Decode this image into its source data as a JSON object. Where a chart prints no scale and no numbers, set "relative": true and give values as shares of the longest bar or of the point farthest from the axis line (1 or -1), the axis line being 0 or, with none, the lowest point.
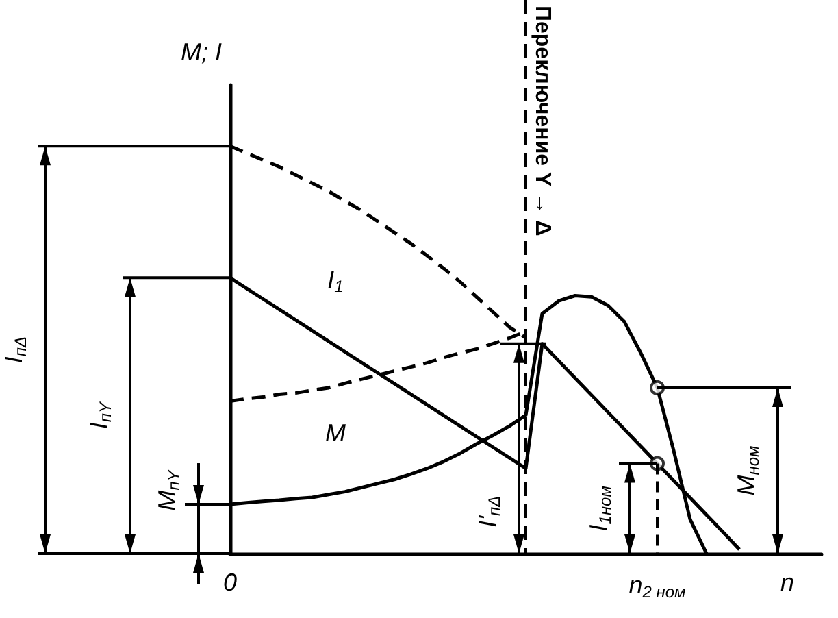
{
  "chart_data": {
    "type": "line",
    "relative": true,
    "ylabel": "M; I",
    "xlabel": "n",
    "categories": [
      "0",
      null,
      null,
      null,
      null,
      null,
      null,
      null,
      null,
      null,
      null,
      null,
      null,
      null,
      null,
      null,
      null,
      null,
      null,
      null,
      null,
      null,
      null,
      null,
      null,
      null,
      "n$_{2 ном}$",
      null,
      null,
      null,
      null,
      null,
      null,
      null,
      null,
      null,
      null
    ],
    "series": [
      {
        "line_style": "dashed",
        "color": "#000000",
        "values": [
          1.0,
          0.983,
          0.966,
          0.949,
          0.929,
          0.909,
          0.889,
          0.865,
          0.842,
          0.815,
          0.788,
          0.761,
          0.731,
          0.7,
          0.667,
          0.63,
          0.593,
          0.556,
          0.529,
          null,
          null,
          null,
          null,
          null,
          null,
          null,
          null,
          null,
          null,
          null,
          null,
          null,
          null,
          null,
          null,
          null,
          null
        ]
      },
      {
        "name": "I$_{1}$",
        "line_style": "solid",
        "color": "#000000",
        "values": [
          0.677,
          0.651,
          0.625,
          0.599,
          0.573,
          0.547,
          0.521,
          0.495,
          0.469,
          0.443,
          0.417,
          0.391,
          0.365,
          0.339,
          0.313,
          0.287,
          0.261,
          0.235,
          0.209,
          0.515,
          0.473,
          0.431,
          0.389,
          0.347,
          0.305,
          0.263,
          0.221,
          0.179,
          0.137,
          0.095,
          0.053,
          0.01,
          null,
          null,
          null,
          null,
          null
        ]
      },
      {
        "line_style": "dashed",
        "color": "#000000",
        "values": [
          0.374,
          0.38,
          0.384,
          0.391,
          0.394,
          0.401,
          0.407,
          0.418,
          0.428,
          0.438,
          0.448,
          0.458,
          0.468,
          0.481,
          0.492,
          0.502,
          0.515,
          0.529,
          0.545,
          null,
          null,
          null,
          null,
          null,
          null,
          null,
          null,
          null,
          null,
          null,
          null,
          null,
          null,
          null,
          null,
          null,
          null
        ]
      },
      {
        "name": "M",
        "line_style": "solid",
        "color": "#000000",
        "values": [
          0.121,
          0.125,
          0.128,
          0.131,
          0.135,
          0.138,
          0.145,
          0.152,
          0.162,
          0.172,
          0.182,
          0.195,
          0.209,
          0.226,
          0.246,
          0.269,
          0.29,
          0.313,
          0.34,
          0.589,
          0.62,
          0.633,
          0.63,
          0.609,
          0.569,
          0.492,
          0.407,
          0.253,
          0.084,
          0,
          null,
          null,
          null,
          null,
          null,
          null,
          null
        ]
      },
      {
        "type": "scatter",
        "marker": "circle",
        "color": "#000000",
        "values": [
          null,
          null,
          null,
          null,
          null,
          null,
          null,
          null,
          null,
          null,
          null,
          null,
          null,
          null,
          null,
          null,
          null,
          null,
          null,
          null,
          null,
          null,
          null,
          null,
          null,
          null,
          0.407,
          null,
          null,
          null,
          null,
          null,
          null,
          null,
          null,
          null,
          null
        ]
      },
      {
        "type": "scatter",
        "marker": "circle",
        "color": "#000000",
        "values": [
          null,
          null,
          null,
          null,
          null,
          null,
          null,
          null,
          null,
          null,
          null,
          null,
          null,
          null,
          null,
          null,
          null,
          null,
          null,
          null,
          null,
          null,
          null,
          null,
          null,
          null,
          0.221,
          null,
          null,
          null,
          null,
          null,
          null,
          null,
          null,
          null,
          null
        ]
      }
    ],
    "annotations": [
      "I$_{пΔ}$",
      "I$_{пY}$",
      "M$_{пY}$",
      "I'$_{пΔ}$",
      "I$_{1ном}$",
      "M$_{ном}$",
      "Переключение Y → Δ"
    ]
  }
}
